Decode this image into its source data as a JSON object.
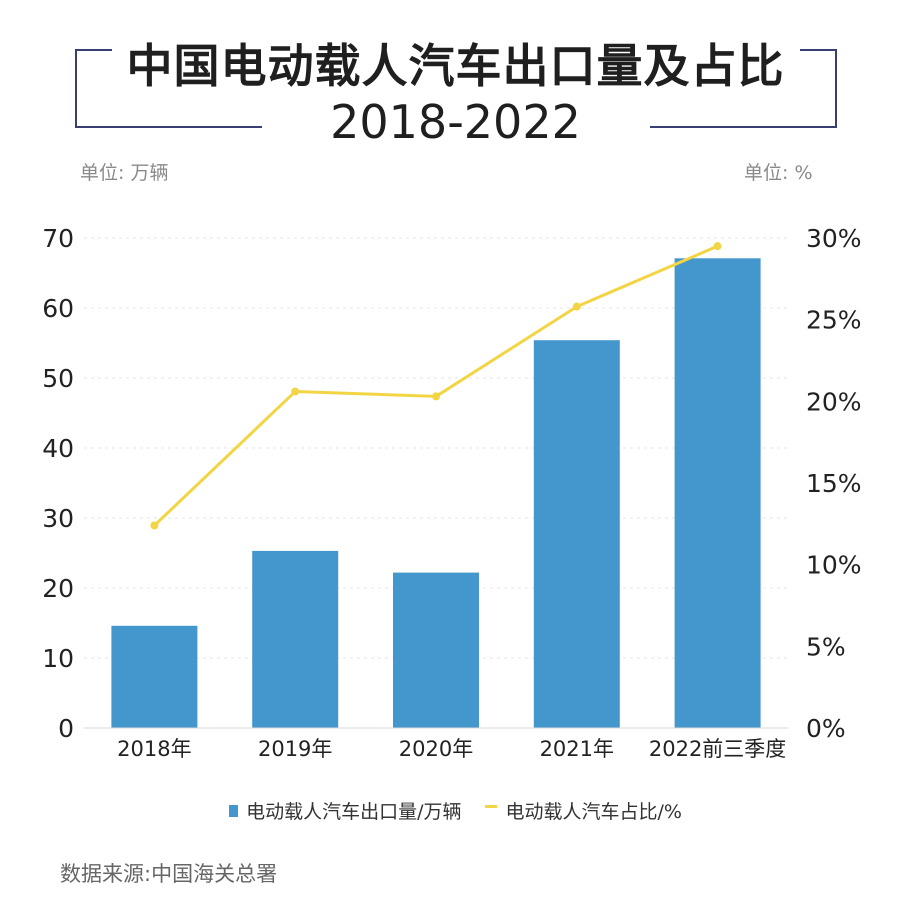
{
  "title": "中国电动载人汽车出口量及占比",
  "subtitle": "2018-2022",
  "unit_left": "单位: 万辆",
  "unit_right": "单位: %",
  "source": "数据来源:中国海关总署",
  "colors": {
    "bar": "#4497cd",
    "line": "#f2d544",
    "frame": "#3a3f73",
    "grid": "#e6e6e6",
    "axis_text": "#222222"
  },
  "chart_data": {
    "type": "bar",
    "categories": [
      "2018年",
      "2019年",
      "2020年",
      "2021年",
      "2022前三季度"
    ],
    "series": [
      {
        "name": "电动载人汽车出口量/万辆",
        "type": "bar",
        "axis": "left",
        "values": [
          14.6,
          25.3,
          22.2,
          55.4,
          67.1
        ]
      },
      {
        "name": "电动载人汽车占比/%",
        "type": "line",
        "axis": "right",
        "values": [
          12.4,
          20.6,
          20.3,
          25.8,
          29.5
        ]
      }
    ],
    "y_left": {
      "ticks": [
        "0",
        "10",
        "20",
        "30",
        "40",
        "50",
        "60",
        "70"
      ],
      "ylim": [
        0,
        70
      ]
    },
    "y_right": {
      "ticks": [
        "0%",
        "5%",
        "10%",
        "15%",
        "20%",
        "25%",
        "30%"
      ],
      "ylim": [
        0,
        30
      ]
    },
    "legend": "bottom",
    "grid": true
  }
}
